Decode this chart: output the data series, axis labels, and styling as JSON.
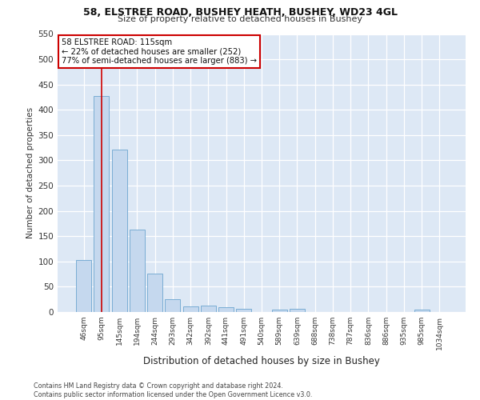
{
  "title1": "58, ELSTREE ROAD, BUSHEY HEATH, BUSHEY, WD23 4GL",
  "title2": "Size of property relative to detached houses in Bushey",
  "xlabel": "Distribution of detached houses by size in Bushey",
  "ylabel": "Number of detached properties",
  "footer1": "Contains HM Land Registry data © Crown copyright and database right 2024.",
  "footer2": "Contains public sector information licensed under the Open Government Licence v3.0.",
  "bar_labels": [
    "46sqm",
    "95sqm",
    "145sqm",
    "194sqm",
    "244sqm",
    "293sqm",
    "342sqm",
    "392sqm",
    "441sqm",
    "491sqm",
    "540sqm",
    "589sqm",
    "639sqm",
    "688sqm",
    "738sqm",
    "787sqm",
    "836sqm",
    "886sqm",
    "935sqm",
    "985sqm",
    "1034sqm"
  ],
  "bar_values": [
    103,
    428,
    322,
    163,
    76,
    26,
    11,
    13,
    10,
    6,
    0,
    5,
    6,
    0,
    0,
    0,
    0,
    0,
    0,
    5,
    0
  ],
  "bar_color": "#c5d8ee",
  "bar_edge_color": "#7aadd4",
  "background_color": "#dde8f5",
  "fig_background": "#ffffff",
  "grid_color": "#ffffff",
  "red_line_x": 1,
  "annotation_text": "58 ELSTREE ROAD: 115sqm\n← 22% of detached houses are smaller (252)\n77% of semi-detached houses are larger (883) →",
  "annotation_box_edge": "#cc0000",
  "ylim": [
    0,
    550
  ],
  "yticks": [
    0,
    50,
    100,
    150,
    200,
    250,
    300,
    350,
    400,
    450,
    500,
    550
  ]
}
